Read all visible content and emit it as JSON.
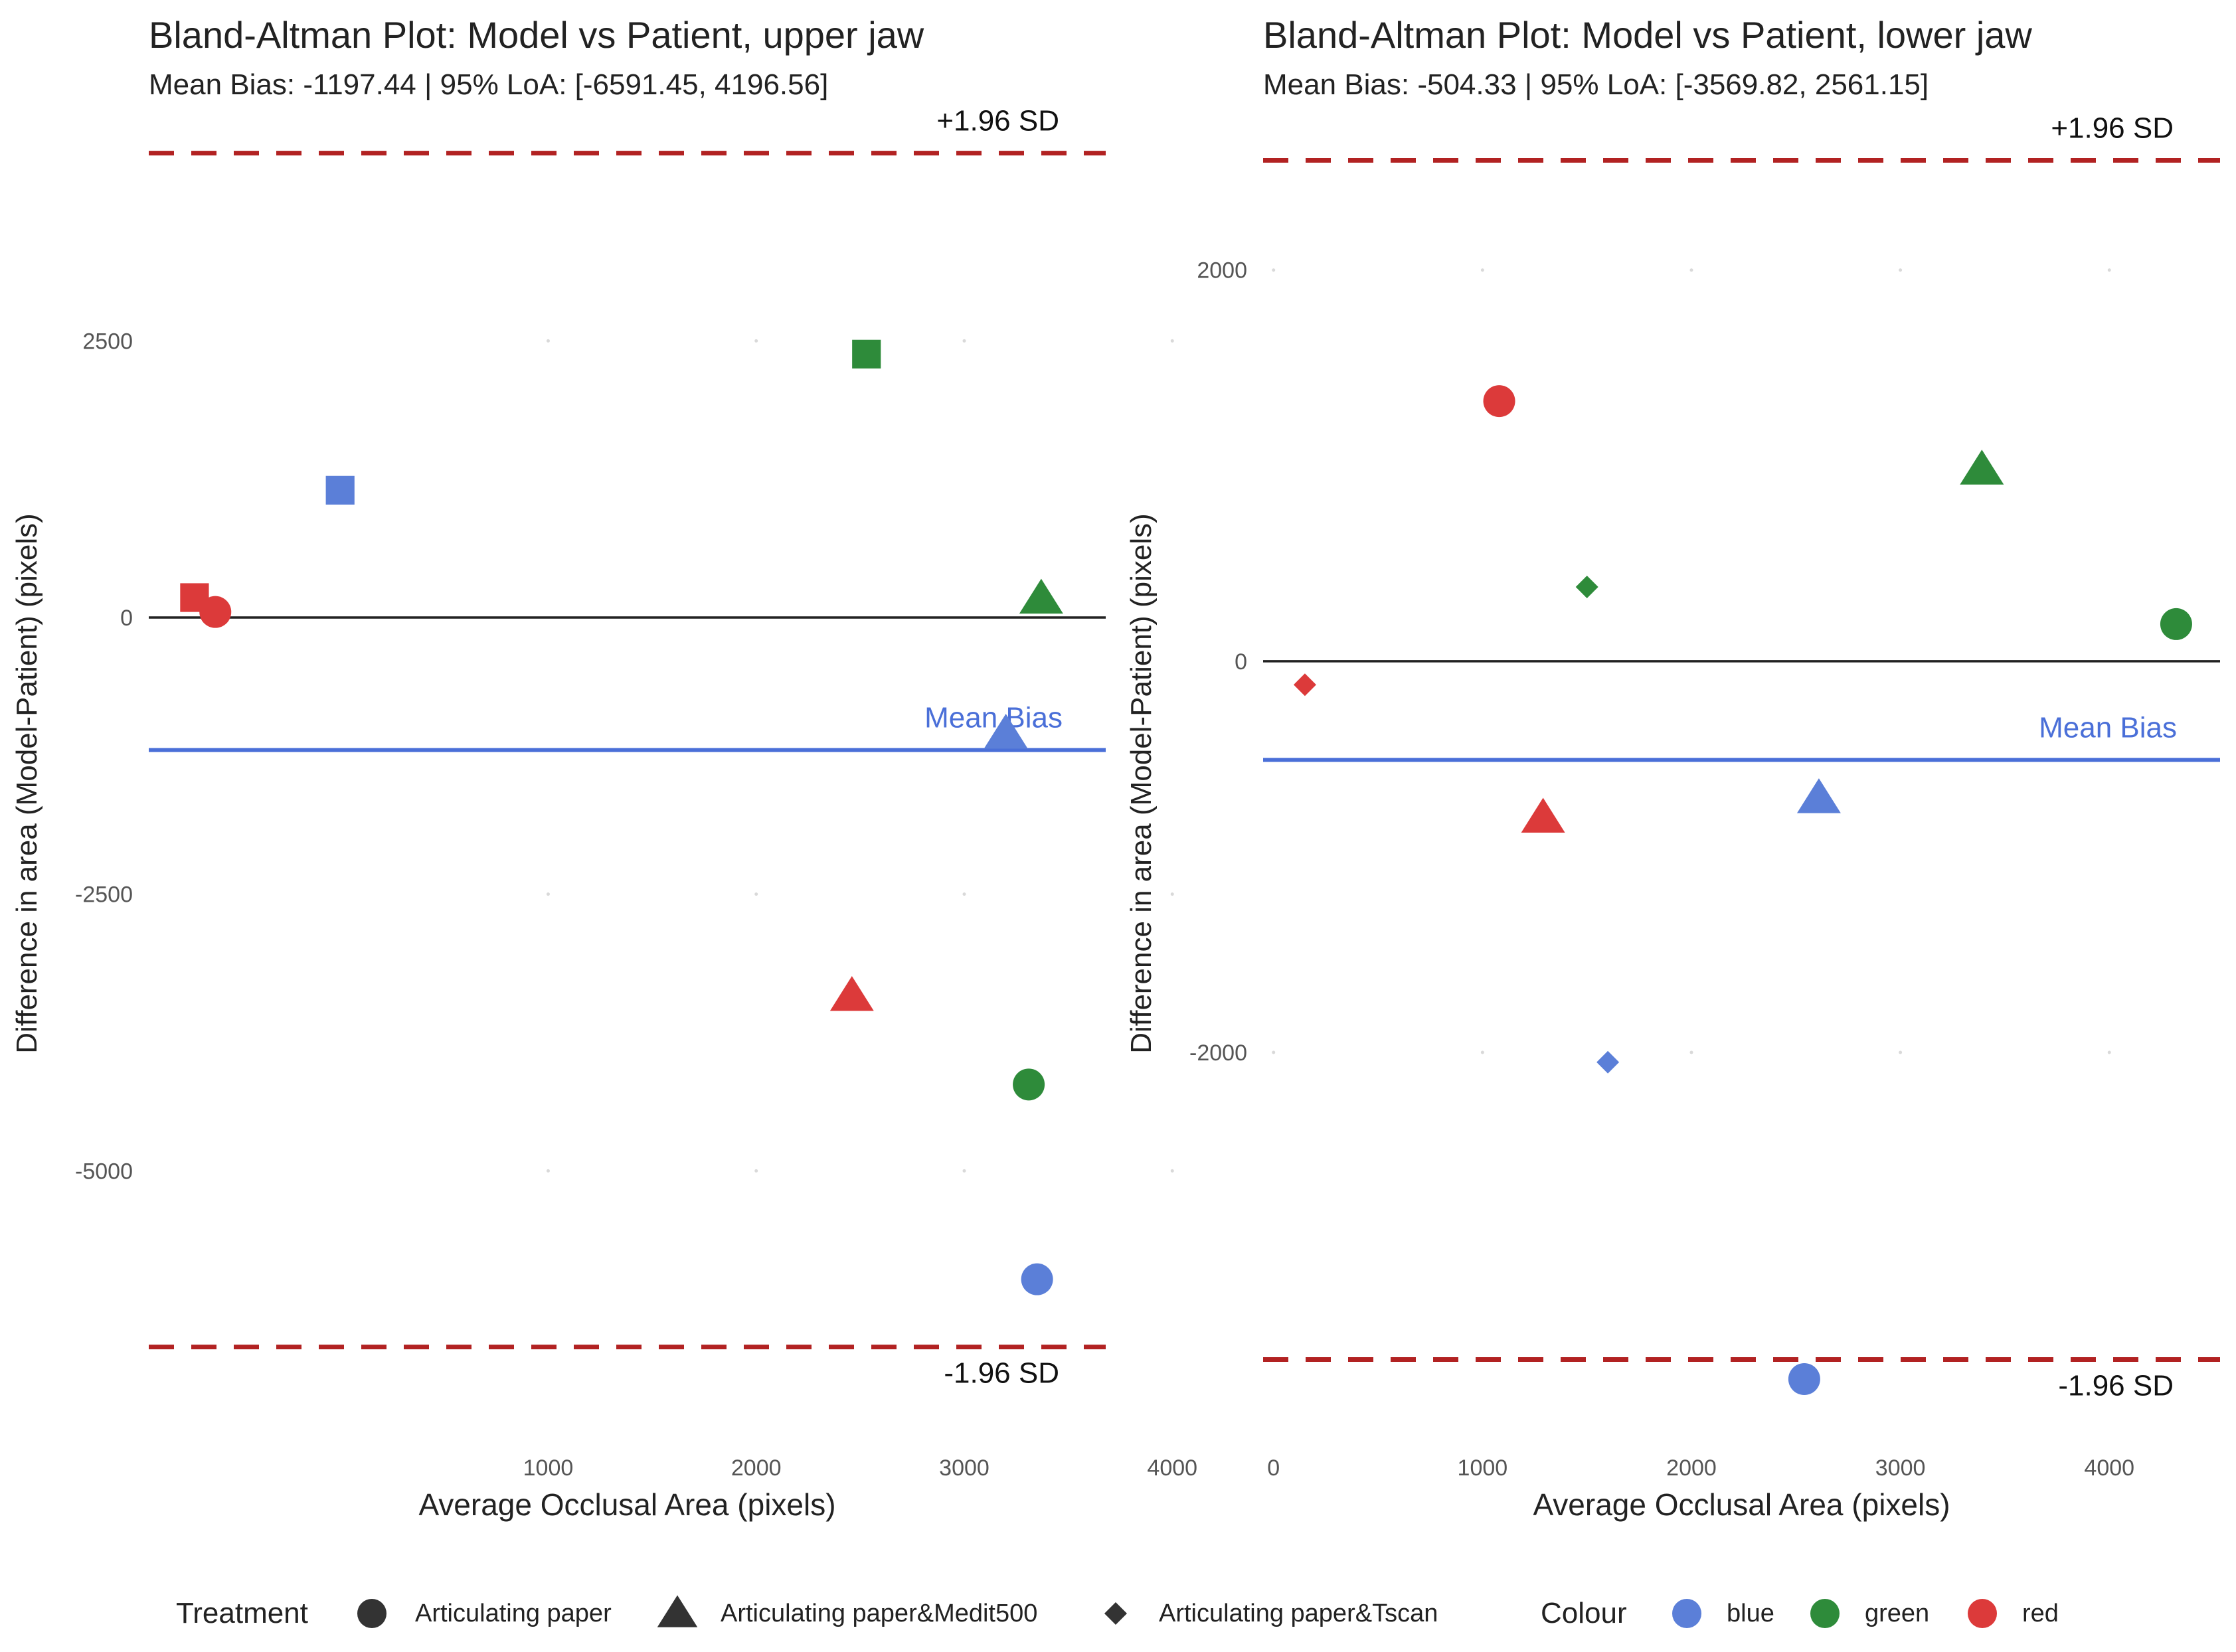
{
  "chart_data": [
    {
      "type": "scatter",
      "title": "Bland-Altman Plot: Model vs Patient, upper jaw",
      "subtitle": "Mean Bias: -1197.44 | 95% LoA: [-6591.45, 4196.56]",
      "xlabel": "Average Occlusal Area (pixels)",
      "ylabel": "Difference in area (Model-Patient) (pixels)",
      "xlim": [
        -920,
        3680
      ],
      "ylim": [
        -7200,
        4200
      ],
      "xticks": [
        1000,
        2000,
        3000,
        4000
      ],
      "yticks": [
        -5000,
        -2500,
        0,
        2500
      ],
      "grid": false,
      "mean_bias": -1197.44,
      "loa_upper": 4196.56,
      "loa_lower": -6591.45,
      "mean_bias_label": "Mean Bias",
      "upper_label": "+1.96 SD",
      "lower_label": "-1.96 SD",
      "points": [
        {
          "x": -700,
          "y": 180,
          "shape": "square",
          "colour": "red"
        },
        {
          "x": -600,
          "y": 50,
          "shape": "circle",
          "colour": "red"
        },
        {
          "x": 0,
          "y": 1150,
          "shape": "square",
          "colour": "blue"
        },
        {
          "x": 2530,
          "y": 2380,
          "shape": "square",
          "colour": "green"
        },
        {
          "x": 3370,
          "y": 170,
          "shape": "triangle",
          "colour": "green"
        },
        {
          "x": 3200,
          "y": -1050,
          "shape": "triangle",
          "colour": "blue"
        },
        {
          "x": 2460,
          "y": -3420,
          "shape": "triangle",
          "colour": "red"
        },
        {
          "x": 3310,
          "y": -4220,
          "shape": "circle",
          "colour": "green"
        },
        {
          "x": 3350,
          "y": -5980,
          "shape": "circle",
          "colour": "blue"
        }
      ]
    },
    {
      "type": "scatter",
      "title": "Bland-Altman Plot: Model vs Patient, lower jaw",
      "subtitle": "Mean Bias: -504.33 | 95% LoA: [-3569.82, 2561.15]",
      "xlabel": "Average Occlusal Area (pixels)",
      "ylabel": "Difference in area (Model-Patient) (pixels)",
      "xlim": [
        -50,
        4530
      ],
      "ylim": [
        -3850,
        2600
      ],
      "xticks": [
        0,
        1000,
        2000,
        3000,
        4000
      ],
      "yticks": [
        -2000,
        0,
        2000
      ],
      "grid": false,
      "mean_bias": -504.33,
      "loa_upper": 2561.15,
      "loa_lower": -3569.82,
      "mean_bias_label": "Mean Bias",
      "upper_label": "+1.96 SD",
      "lower_label": "-1.96 SD",
      "points": [
        {
          "x": 1080,
          "y": 1330,
          "shape": "circle",
          "colour": "red"
        },
        {
          "x": 3390,
          "y": 980,
          "shape": "triangle",
          "colour": "green"
        },
        {
          "x": 1500,
          "y": 380,
          "shape": "diamond",
          "colour": "green"
        },
        {
          "x": 4320,
          "y": 190,
          "shape": "circle",
          "colour": "green"
        },
        {
          "x": 150,
          "y": -120,
          "shape": "diamond",
          "colour": "red"
        },
        {
          "x": 1290,
          "y": -800,
          "shape": "triangle",
          "colour": "red"
        },
        {
          "x": 2610,
          "y": -700,
          "shape": "triangle",
          "colour": "blue"
        },
        {
          "x": 1600,
          "y": -2050,
          "shape": "diamond",
          "colour": "blue"
        },
        {
          "x": 2540,
          "y": -3670,
          "shape": "circle",
          "colour": "blue"
        }
      ]
    }
  ],
  "legend": {
    "treatment_title": "Treatment",
    "treatment_items": [
      {
        "label": "Articulating paper",
        "shape": "circle"
      },
      {
        "label": "Articulating paper&Medit500",
        "shape": "triangle"
      },
      {
        "label": "Articulating paper&Tscan",
        "shape": "diamond"
      }
    ],
    "colour_title": "Colour",
    "colour_items": [
      {
        "label": "blue",
        "colour": "blue"
      },
      {
        "label": "green",
        "colour": "green"
      },
      {
        "label": "red",
        "colour": "red"
      }
    ]
  },
  "colors": {
    "blue": "#5b7fd8",
    "green": "#2e8b3a",
    "red": "#dc3a3a",
    "mean_line": "#4a6fd8",
    "loa_line": "#b22222",
    "zero_line": "#222222",
    "legend_shape": "#333333"
  }
}
